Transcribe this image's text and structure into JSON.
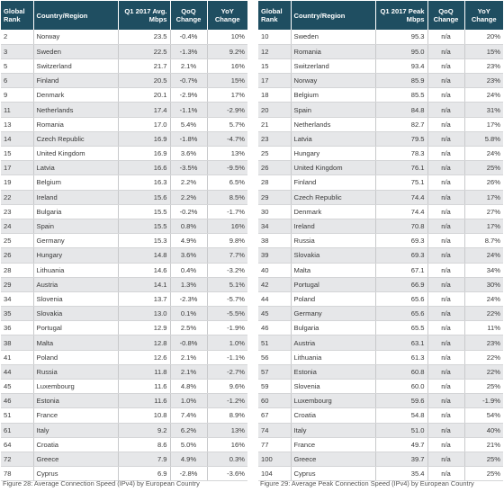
{
  "left_table": {
    "headers": {
      "rank": "Global Rank",
      "country": "Country/Region",
      "value": "Q1 2017 Avg. Mbps",
      "qoq": "QoQ Change",
      "yoy": "YoY Change"
    },
    "rows": [
      [
        "2",
        "Norway",
        "23.5",
        "-0.4%",
        "10%"
      ],
      [
        "3",
        "Sweden",
        "22.5",
        "-1.3%",
        "9.2%"
      ],
      [
        "5",
        "Switzerland",
        "21.7",
        "2.1%",
        "16%"
      ],
      [
        "6",
        "Finland",
        "20.5",
        "-0.7%",
        "15%"
      ],
      [
        "9",
        "Denmark",
        "20.1",
        "-2.9%",
        "17%"
      ],
      [
        "11",
        "Netherlands",
        "17.4",
        "-1.1%",
        "-2.9%"
      ],
      [
        "13",
        "Romania",
        "17.0",
        "5.4%",
        "5.7%"
      ],
      [
        "14",
        "Czech Republic",
        "16.9",
        "-1.8%",
        "-4.7%"
      ],
      [
        "15",
        "United Kingdom",
        "16.9",
        "3.6%",
        "13%"
      ],
      [
        "17",
        "Latvia",
        "16.6",
        "-3.5%",
        "-9.5%"
      ],
      [
        "19",
        "Belgium",
        "16.3",
        "2.2%",
        "6.5%"
      ],
      [
        "22",
        "Ireland",
        "15.6",
        "2.2%",
        "8.5%"
      ],
      [
        "23",
        "Bulgaria",
        "15.5",
        "-0.2%",
        "-1.7%"
      ],
      [
        "24",
        "Spain",
        "15.5",
        "0.8%",
        "16%"
      ],
      [
        "25",
        "Germany",
        "15.3",
        "4.9%",
        "9.8%"
      ],
      [
        "26",
        "Hungary",
        "14.8",
        "3.6%",
        "7.7%"
      ],
      [
        "28",
        "Lithuania",
        "14.6",
        "0.4%",
        "-3.2%"
      ],
      [
        "29",
        "Austria",
        "14.1",
        "1.3%",
        "5.1%"
      ],
      [
        "34",
        "Slovenia",
        "13.7",
        "-2.3%",
        "-5.7%"
      ],
      [
        "35",
        "Slovakia",
        "13.0",
        "0.1%",
        "-5.5%"
      ],
      [
        "36",
        "Portugal",
        "12.9",
        "2.5%",
        "-1.9%"
      ],
      [
        "38",
        "Malta",
        "12.8",
        "-0.8%",
        "1.0%"
      ],
      [
        "41",
        "Poland",
        "12.6",
        "2.1%",
        "-1.1%"
      ],
      [
        "44",
        "Russia",
        "11.8",
        "2.1%",
        "-2.7%"
      ],
      [
        "45",
        "Luxembourg",
        "11.6",
        "4.8%",
        "9.6%"
      ],
      [
        "46",
        "Estonia",
        "11.6",
        "1.0%",
        "-1.2%"
      ],
      [
        "51",
        "France",
        "10.8",
        "7.4%",
        "8.9%"
      ],
      [
        "61",
        "Italy",
        "9.2",
        "6.2%",
        "13%"
      ],
      [
        "64",
        "Croatia",
        "8.6",
        "5.0%",
        "16%"
      ],
      [
        "72",
        "Greece",
        "7.9",
        "4.9%",
        "0.3%"
      ],
      [
        "78",
        "Cyprus",
        "6.9",
        "-2.8%",
        "-3.6%"
      ]
    ],
    "caption": "Figure 28: Average Connection Speed (IPv4) by European Country"
  },
  "right_table": {
    "headers": {
      "rank": "Global Rank",
      "country": "Country/Region",
      "value": "Q1 2017 Peak Mbps",
      "qoq": "QoQ Change",
      "yoy": "YoY Change"
    },
    "rows": [
      [
        "10",
        "Sweden",
        "95.3",
        "n/a",
        "20%"
      ],
      [
        "12",
        "Romania",
        "95.0",
        "n/a",
        "15%"
      ],
      [
        "15",
        "Switzerland",
        "93.4",
        "n/a",
        "23%"
      ],
      [
        "17",
        "Norway",
        "85.9",
        "n/a",
        "23%"
      ],
      [
        "18",
        "Belgium",
        "85.5",
        "n/a",
        "24%"
      ],
      [
        "20",
        "Spain",
        "84.8",
        "n/a",
        "31%"
      ],
      [
        "21",
        "Netherlands",
        "82.7",
        "n/a",
        "17%"
      ],
      [
        "23",
        "Latvia",
        "79.5",
        "n/a",
        "5.8%"
      ],
      [
        "25",
        "Hungary",
        "78.3",
        "n/a",
        "24%"
      ],
      [
        "26",
        "United Kingdom",
        "76.1",
        "n/a",
        "25%"
      ],
      [
        "28",
        "Finland",
        "75.1",
        "n/a",
        "26%"
      ],
      [
        "29",
        "Czech Republic",
        "74.4",
        "n/a",
        "17%"
      ],
      [
        "30",
        "Denmark",
        "74.4",
        "n/a",
        "27%"
      ],
      [
        "34",
        "Ireland",
        "70.8",
        "n/a",
        "17%"
      ],
      [
        "38",
        "Russia",
        "69.3",
        "n/a",
        "8.7%"
      ],
      [
        "39",
        "Slovakia",
        "69.3",
        "n/a",
        "24%"
      ],
      [
        "40",
        "Malta",
        "67.1",
        "n/a",
        "34%"
      ],
      [
        "42",
        "Portugal",
        "66.9",
        "n/a",
        "30%"
      ],
      [
        "44",
        "Poland",
        "65.6",
        "n/a",
        "24%"
      ],
      [
        "45",
        "Germany",
        "65.6",
        "n/a",
        "22%"
      ],
      [
        "46",
        "Bulgaria",
        "65.5",
        "n/a",
        "11%"
      ],
      [
        "51",
        "Austria",
        "63.1",
        "n/a",
        "23%"
      ],
      [
        "56",
        "Lithuania",
        "61.3",
        "n/a",
        "22%"
      ],
      [
        "57",
        "Estonia",
        "60.8",
        "n/a",
        "22%"
      ],
      [
        "59",
        "Slovenia",
        "60.0",
        "n/a",
        "25%"
      ],
      [
        "60",
        "Luxembourg",
        "59.6",
        "n/a",
        "-1.9%"
      ],
      [
        "67",
        "Croatia",
        "54.8",
        "n/a",
        "54%"
      ],
      [
        "74",
        "Italy",
        "51.0",
        "n/a",
        "40%"
      ],
      [
        "77",
        "France",
        "49.7",
        "n/a",
        "21%"
      ],
      [
        "100",
        "Greece",
        "39.7",
        "n/a",
        "25%"
      ],
      [
        "104",
        "Cyprus",
        "35.4",
        "n/a",
        "25%"
      ]
    ],
    "caption": "Figure 29: Average Peak Connection Speed (IPv4) by European Country"
  },
  "colors": {
    "header_bg": "#1f4e61",
    "header_text": "#ffffff",
    "row_stripe": "#e6e7e9",
    "body_text": "#3a3a3a"
  }
}
